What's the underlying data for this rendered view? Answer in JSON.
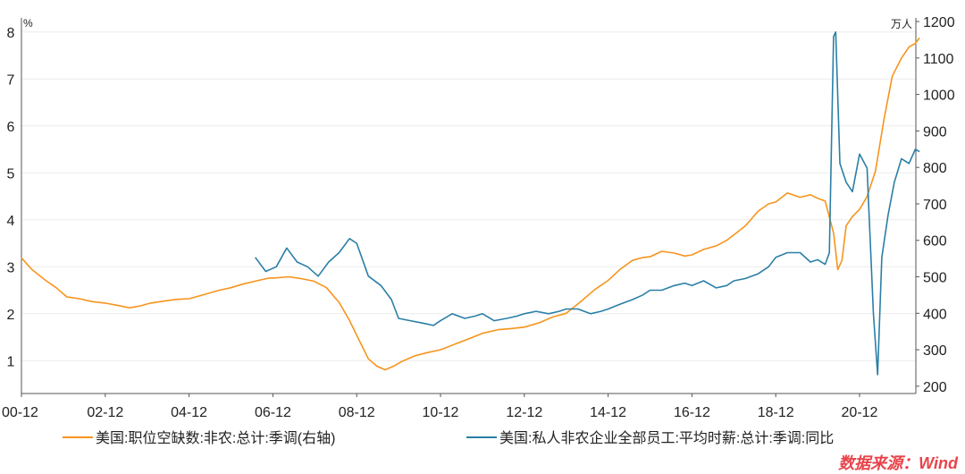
{
  "chart_data": {
    "type": "line",
    "left_axis": {
      "unit": "%",
      "ylim": [
        0.3,
        8.3
      ],
      "ticks": [
        1,
        2,
        3,
        4,
        5,
        6,
        7,
        8
      ]
    },
    "right_axis": {
      "unit": "万人",
      "ylim": [
        180,
        1210
      ],
      "ticks": [
        200,
        300,
        400,
        500,
        600,
        700,
        800,
        900,
        1000,
        1100,
        1200
      ]
    },
    "x_axis": {
      "ticks": [
        "00-12",
        "02-12",
        "04-12",
        "06-12",
        "08-12",
        "10-12",
        "12-12",
        "14-12",
        "16-12",
        "18-12",
        "20-12"
      ],
      "range": [
        2000.92,
        2022.35
      ]
    },
    "grid": "horizontal",
    "series": [
      {
        "name": "美国:职位空缺数:非农:总计:季调(右轴)",
        "axis": "right",
        "color": "#f7941d",
        "points": [
          [
            2000.92,
            552
          ],
          [
            2001.17,
            520
          ],
          [
            2001.5,
            490
          ],
          [
            2001.75,
            470
          ],
          [
            2002.0,
            445
          ],
          [
            2002.3,
            440
          ],
          [
            2002.6,
            432
          ],
          [
            2002.92,
            428
          ],
          [
            2003.2,
            422
          ],
          [
            2003.5,
            415
          ],
          [
            2003.75,
            420
          ],
          [
            2004.0,
            428
          ],
          [
            2004.3,
            433
          ],
          [
            2004.6,
            438
          ],
          [
            2004.92,
            440
          ],
          [
            2005.3,
            452
          ],
          [
            2005.6,
            462
          ],
          [
            2005.92,
            470
          ],
          [
            2006.2,
            480
          ],
          [
            2006.5,
            488
          ],
          [
            2006.8,
            496
          ],
          [
            2007.0,
            497
          ],
          [
            2007.3,
            500
          ],
          [
            2007.6,
            495
          ],
          [
            2007.9,
            488
          ],
          [
            2008.2,
            470
          ],
          [
            2008.5,
            430
          ],
          [
            2008.75,
            380
          ],
          [
            2008.92,
            340
          ],
          [
            2009.2,
            275
          ],
          [
            2009.4,
            255
          ],
          [
            2009.6,
            245
          ],
          [
            2009.8,
            255
          ],
          [
            2010.0,
            268
          ],
          [
            2010.3,
            283
          ],
          [
            2010.6,
            292
          ],
          [
            2010.92,
            300
          ],
          [
            2011.3,
            317
          ],
          [
            2011.6,
            330
          ],
          [
            2011.92,
            345
          ],
          [
            2012.3,
            355
          ],
          [
            2012.6,
            358
          ],
          [
            2012.92,
            362
          ],
          [
            2013.3,
            375
          ],
          [
            2013.6,
            390
          ],
          [
            2013.92,
            400
          ],
          [
            2014.3,
            435
          ],
          [
            2014.6,
            465
          ],
          [
            2014.92,
            490
          ],
          [
            2015.2,
            520
          ],
          [
            2015.5,
            545
          ],
          [
            2015.75,
            553
          ],
          [
            2015.92,
            555
          ],
          [
            2016.2,
            570
          ],
          [
            2016.5,
            565
          ],
          [
            2016.75,
            557
          ],
          [
            2016.92,
            560
          ],
          [
            2017.2,
            575
          ],
          [
            2017.5,
            585
          ],
          [
            2017.75,
            600
          ],
          [
            2017.92,
            615
          ],
          [
            2018.2,
            640
          ],
          [
            2018.5,
            680
          ],
          [
            2018.75,
            700
          ],
          [
            2018.92,
            705
          ],
          [
            2019.2,
            730
          ],
          [
            2019.5,
            718
          ],
          [
            2019.75,
            725
          ],
          [
            2019.92,
            715
          ],
          [
            2020.1,
            708
          ],
          [
            2020.3,
            620
          ],
          [
            2020.4,
            520
          ],
          [
            2020.5,
            545
          ],
          [
            2020.6,
            640
          ],
          [
            2020.75,
            665
          ],
          [
            2020.92,
            685
          ],
          [
            2021.1,
            720
          ],
          [
            2021.3,
            790
          ],
          [
            2021.5,
            930
          ],
          [
            2021.7,
            1050
          ],
          [
            2021.92,
            1100
          ],
          [
            2022.1,
            1130
          ],
          [
            2022.25,
            1140
          ],
          [
            2022.35,
            1155
          ]
        ]
      },
      {
        "name": "美国:私人非农企业全部员工:平均时薪:总计:季调:同比",
        "axis": "left",
        "color": "#2a7fa6",
        "points": [
          [
            2006.5,
            3.2
          ],
          [
            2006.75,
            2.9
          ],
          [
            2007.0,
            3.0
          ],
          [
            2007.25,
            3.4
          ],
          [
            2007.5,
            3.1
          ],
          [
            2007.75,
            3.0
          ],
          [
            2008.0,
            2.8
          ],
          [
            2008.25,
            3.1
          ],
          [
            2008.5,
            3.3
          ],
          [
            2008.75,
            3.6
          ],
          [
            2008.92,
            3.5
          ],
          [
            2009.2,
            2.8
          ],
          [
            2009.5,
            2.6
          ],
          [
            2009.75,
            2.3
          ],
          [
            2009.92,
            1.9
          ],
          [
            2010.2,
            1.85
          ],
          [
            2010.5,
            1.8
          ],
          [
            2010.75,
            1.75
          ],
          [
            2010.92,
            1.85
          ],
          [
            2011.2,
            2.0
          ],
          [
            2011.5,
            1.9
          ],
          [
            2011.75,
            1.95
          ],
          [
            2011.92,
            2.0
          ],
          [
            2012.2,
            1.85
          ],
          [
            2012.5,
            1.9
          ],
          [
            2012.75,
            1.95
          ],
          [
            2012.92,
            2.0
          ],
          [
            2013.2,
            2.05
          ],
          [
            2013.5,
            2.0
          ],
          [
            2013.75,
            2.05
          ],
          [
            2013.92,
            2.1
          ],
          [
            2014.2,
            2.1
          ],
          [
            2014.5,
            2.0
          ],
          [
            2014.75,
            2.05
          ],
          [
            2014.92,
            2.1
          ],
          [
            2015.2,
            2.2
          ],
          [
            2015.5,
            2.3
          ],
          [
            2015.75,
            2.4
          ],
          [
            2015.92,
            2.5
          ],
          [
            2016.2,
            2.5
          ],
          [
            2016.5,
            2.6
          ],
          [
            2016.75,
            2.65
          ],
          [
            2016.92,
            2.6
          ],
          [
            2017.2,
            2.7
          ],
          [
            2017.5,
            2.55
          ],
          [
            2017.75,
            2.6
          ],
          [
            2017.92,
            2.7
          ],
          [
            2018.2,
            2.75
          ],
          [
            2018.5,
            2.85
          ],
          [
            2018.75,
            3.0
          ],
          [
            2018.92,
            3.2
          ],
          [
            2019.2,
            3.3
          ],
          [
            2019.5,
            3.3
          ],
          [
            2019.75,
            3.1
          ],
          [
            2019.92,
            3.15
          ],
          [
            2020.1,
            3.05
          ],
          [
            2020.2,
            3.3
          ],
          [
            2020.3,
            7.9
          ],
          [
            2020.35,
            8.0
          ],
          [
            2020.45,
            5.2
          ],
          [
            2020.6,
            4.8
          ],
          [
            2020.75,
            4.6
          ],
          [
            2020.92,
            5.4
          ],
          [
            2021.1,
            5.1
          ],
          [
            2021.25,
            2.0
          ],
          [
            2021.35,
            0.7
          ],
          [
            2021.45,
            3.2
          ],
          [
            2021.6,
            4.1
          ],
          [
            2021.75,
            4.8
          ],
          [
            2021.92,
            5.3
          ],
          [
            2022.1,
            5.2
          ],
          [
            2022.25,
            5.5
          ],
          [
            2022.35,
            5.45
          ]
        ]
      }
    ],
    "legend_position": "bottom",
    "source_note": "数据来源：Wind"
  }
}
